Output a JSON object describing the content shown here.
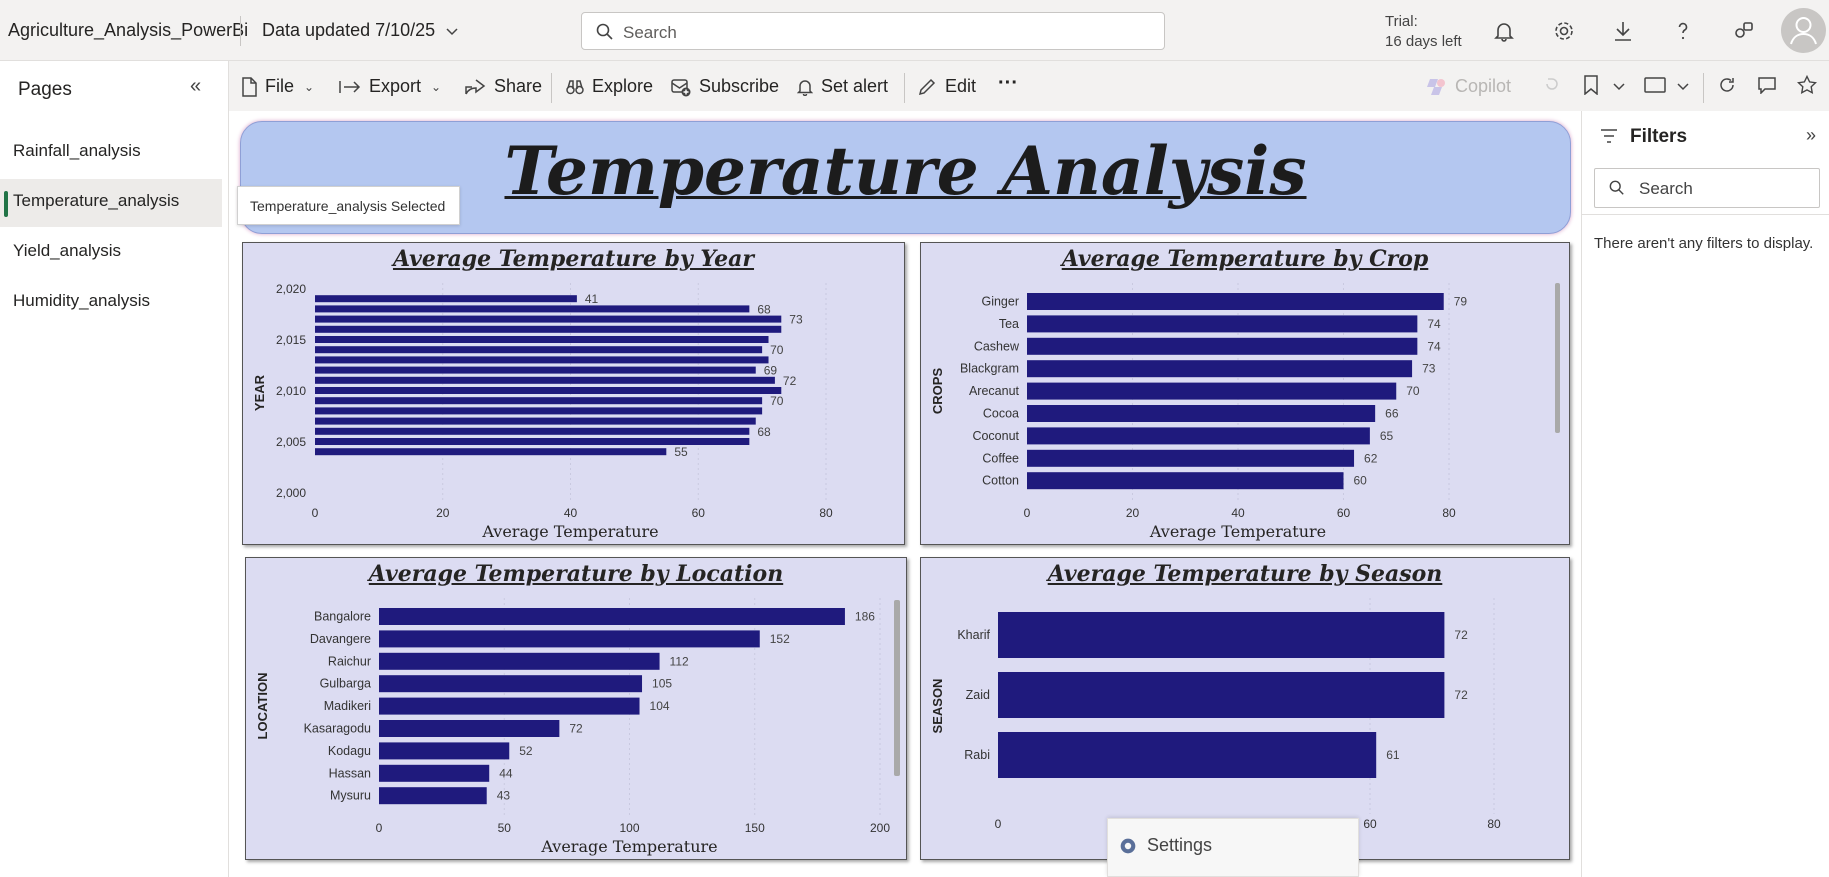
{
  "app": {
    "title": "Agriculture_Analysis_PowerBi",
    "data_updated": "Data updated 7/10/25",
    "search_placeholder": "Search",
    "trial_line1": "Trial:",
    "trial_line2": "16 days left"
  },
  "sidebar": {
    "heading": "Pages",
    "items": [
      {
        "label": "Rainfall_analysis",
        "selected": false
      },
      {
        "label": "Temperature_analysis",
        "selected": true
      },
      {
        "label": "Yield_analysis",
        "selected": false
      },
      {
        "label": "Humidity_analysis",
        "selected": false
      }
    ],
    "tooltip": "Temperature_analysis Selected"
  },
  "toolbar": {
    "file": "File",
    "export": "Export",
    "share": "Share",
    "explore": "Explore",
    "subscribe": "Subscribe",
    "set_alert": "Set alert",
    "edit": "Edit",
    "more": "···",
    "copilot": "Copilot"
  },
  "report": {
    "banner_title": "Temperature Analysis"
  },
  "filters": {
    "heading": "Filters",
    "search_placeholder": "Search",
    "empty_message": "There aren't any filters to display."
  },
  "settings_popup": {
    "label": "Settings"
  },
  "colors": {
    "bar": "#1f1a7d",
    "card_bg": "#dcdcf2",
    "banner_bg": "#b4c7f0",
    "selected_accent": "#217346"
  },
  "chart_data": [
    {
      "type": "bar",
      "orientation": "horizontal",
      "title": "Average Temperature by Year",
      "xlabel": "Average Temperature",
      "ylabel": "YEAR",
      "xlim": [
        0,
        80
      ],
      "xticks": [
        "0",
        "20",
        "40",
        "60",
        "80"
      ],
      "yticks": [
        "2,020",
        "2,015",
        "2,010",
        "2,005",
        "2,000"
      ],
      "categories": [
        "2019",
        "2018",
        "2017",
        "2016",
        "2015",
        "2014",
        "2013",
        "2012",
        "2011",
        "2010",
        "2009",
        "2008",
        "2007",
        "2006",
        "2005",
        "2004"
      ],
      "values": [
        41,
        68,
        73,
        73,
        71,
        70,
        71,
        69,
        72,
        73,
        70,
        70,
        69,
        68,
        68,
        55
      ],
      "data_labels": [
        "41",
        "68",
        "73",
        "",
        "",
        "70",
        "",
        "69",
        "72",
        "",
        "70",
        "",
        "",
        "68",
        "",
        "55"
      ]
    },
    {
      "type": "bar",
      "orientation": "horizontal",
      "title": "Average Temperature by Crop",
      "xlabel": "Average Temperature",
      "ylabel": "CROPS",
      "xlim": [
        0,
        80
      ],
      "xticks": [
        "0",
        "20",
        "40",
        "60",
        "80"
      ],
      "categories": [
        "Ginger",
        "Tea",
        "Cashew",
        "Blackgram",
        "Arecanut",
        "Cocoa",
        "Coconut",
        "Coffee",
        "Cotton"
      ],
      "values": [
        79,
        74,
        74,
        73,
        70,
        66,
        65,
        62,
        60
      ]
    },
    {
      "type": "bar",
      "orientation": "horizontal",
      "title": "Average Temperature by Location",
      "xlabel": "Average Temperature",
      "ylabel": "LOCATION",
      "xlim": [
        0,
        200
      ],
      "xticks": [
        "0",
        "50",
        "100",
        "150",
        "200"
      ],
      "categories": [
        "Bangalore",
        "Davangere",
        "Raichur",
        "Gulbarga",
        "Madikeri",
        "Kasaragodu",
        "Kodagu",
        "Hassan",
        "Mysuru"
      ],
      "values": [
        186,
        152,
        112,
        105,
        104,
        72,
        52,
        44,
        43
      ]
    },
    {
      "type": "bar",
      "orientation": "horizontal",
      "title": "Average Temperature by Season",
      "ylabel": "SEASON",
      "xlim": [
        0,
        80
      ],
      "xticks": [
        "0",
        "60",
        "80"
      ],
      "categories": [
        "Kharif",
        "Zaid",
        "Rabi"
      ],
      "values": [
        72,
        72,
        61
      ]
    }
  ]
}
